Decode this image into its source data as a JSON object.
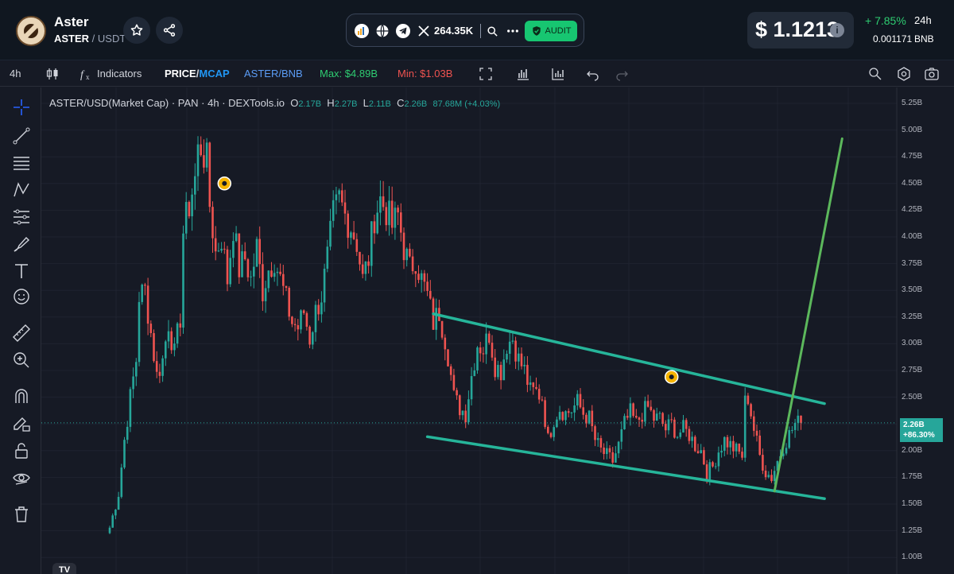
{
  "header": {
    "token_name": "Aster",
    "base": "ASTER",
    "quote": "USDT",
    "twitter_followers": "264.35K",
    "audit_label": "AUDIT",
    "price": "$ 1.1213",
    "change_pct": "+ 7.85%",
    "change_period": "24h",
    "bnb_price": "0.001171",
    "bnb_unit": "BNB",
    "icons": [
      "star-icon",
      "share-icon",
      "chart-logo-icon",
      "globe-icon",
      "telegram-icon",
      "x-icon",
      "search-icon",
      "more-icon",
      "shield-icon",
      "info-icon"
    ]
  },
  "toolbar": {
    "interval": "4h",
    "indicators": "Indicators",
    "price_label": "PRICE",
    "mcap_label": "MCAP",
    "pair2": "ASTER/BNB",
    "max_label": "Max: $4.89B",
    "min_label": "Min: $1.03B",
    "colors": {
      "accent": "#2196f3",
      "max": "#2ecc71",
      "min": "#ef5350",
      "pair2": "#5b9cf6"
    }
  },
  "legend": {
    "title": "ASTER/USD(Market Cap) · PAN · 4h · DEXTools.io",
    "o_key": "O",
    "o_val": "2.17B",
    "h_key": "H",
    "h_val": "2.27B",
    "l_key": "L",
    "l_val": "2.11B",
    "c_key": "C",
    "c_val": "2.26B",
    "change": "87.68M (+4.03%)"
  },
  "price_axis": [
    "5.25B",
    "5.00B",
    "4.75B",
    "4.50B",
    "4.25B",
    "4.00B",
    "3.75B",
    "3.50B",
    "3.25B",
    "3.00B",
    "2.75B",
    "2.50B",
    "2.25B",
    "2.00B",
    "1.75B",
    "1.50B",
    "1.25B",
    "1.00B"
  ],
  "last_price_tag": {
    "price": "2.26B",
    "change": "+86.30%"
  },
  "tv_logo": "TV",
  "chart_data": {
    "type": "candlestick",
    "series_unit": "B",
    "ylim": [
      0.95,
      5.3
    ],
    "colors": {
      "up": "#26a69a",
      "down": "#ef5350",
      "channel": "#26b59a",
      "projection": "#5cb85c"
    },
    "close_path": [
      [
        0,
        1.28
      ],
      [
        3,
        1.6
      ],
      [
        5,
        2.1
      ],
      [
        7,
        2.5
      ],
      [
        9,
        2.85
      ],
      [
        10,
        3.45
      ],
      [
        12,
        3.5
      ],
      [
        14,
        3.1
      ],
      [
        16,
        2.7
      ],
      [
        18,
        2.85
      ],
      [
        20,
        3.2
      ],
      [
        22,
        2.9
      ],
      [
        24,
        3.25
      ],
      [
        25,
        4.05
      ],
      [
        27,
        4.3
      ],
      [
        29,
        4.55
      ],
      [
        30,
        4.8
      ],
      [
        31,
        4.85
      ],
      [
        33,
        4.7
      ],
      [
        34,
        4.3
      ],
      [
        36,
        3.85
      ],
      [
        38,
        4.0
      ],
      [
        40,
        3.6
      ],
      [
        42,
        4.1
      ],
      [
        44,
        3.7
      ],
      [
        46,
        3.8
      ],
      [
        48,
        3.6
      ],
      [
        50,
        3.9
      ],
      [
        52,
        3.5
      ],
      [
        54,
        3.7
      ],
      [
        56,
        3.8
      ],
      [
        58,
        3.6
      ],
      [
        60,
        3.4
      ],
      [
        62,
        3.2
      ],
      [
        64,
        3.15
      ],
      [
        66,
        3.3
      ],
      [
        68,
        3.05
      ],
      [
        70,
        3.3
      ],
      [
        72,
        3.45
      ],
      [
        74,
        3.8
      ],
      [
        76,
        4.2
      ],
      [
        78,
        4.35
      ],
      [
        80,
        4.2
      ],
      [
        82,
        4.1
      ],
      [
        84,
        3.95
      ],
      [
        86,
        3.6
      ],
      [
        88,
        3.8
      ],
      [
        90,
        4.2
      ],
      [
        92,
        4.35
      ],
      [
        94,
        4.25
      ],
      [
        96,
        4.1
      ],
      [
        98,
        4.2
      ],
      [
        100,
        3.9
      ],
      [
        102,
        3.7
      ],
      [
        104,
        3.8
      ],
      [
        106,
        3.6
      ],
      [
        108,
        3.45
      ],
      [
        110,
        3.2
      ],
      [
        112,
        3.3
      ],
      [
        114,
        3.05
      ],
      [
        115,
        2.9
      ],
      [
        117,
        2.5
      ],
      [
        119,
        2.4
      ],
      [
        121,
        2.35
      ],
      [
        123,
        2.7
      ],
      [
        125,
        3.0
      ],
      [
        127,
        2.95
      ],
      [
        129,
        3.1
      ],
      [
        131,
        2.8
      ],
      [
        133,
        2.75
      ],
      [
        135,
        3.0
      ],
      [
        137,
        3.05
      ],
      [
        139,
        2.85
      ],
      [
        141,
        2.75
      ],
      [
        143,
        2.55
      ],
      [
        145,
        2.55
      ],
      [
        147,
        2.5
      ],
      [
        149,
        2.1
      ],
      [
        151,
        2.3
      ],
      [
        153,
        2.4
      ],
      [
        155,
        2.35
      ],
      [
        157,
        2.38
      ],
      [
        159,
        2.45
      ],
      [
        161,
        2.35
      ],
      [
        163,
        2.3
      ],
      [
        165,
        2.1
      ],
      [
        167,
        2.0
      ],
      [
        169,
        1.95
      ],
      [
        171,
        1.9
      ],
      [
        173,
        2.05
      ],
      [
        175,
        2.25
      ],
      [
        177,
        2.35
      ],
      [
        179,
        2.25
      ],
      [
        181,
        2.35
      ],
      [
        183,
        2.4
      ],
      [
        185,
        2.3
      ],
      [
        187,
        2.3
      ],
      [
        189,
        2.2
      ],
      [
        191,
        2.25
      ],
      [
        193,
        2.15
      ],
      [
        195,
        2.2
      ],
      [
        197,
        2.15
      ],
      [
        199,
        2.05
      ],
      [
        201,
        2.0
      ],
      [
        203,
        1.8
      ],
      [
        205,
        1.85
      ],
      [
        207,
        2.0
      ],
      [
        209,
        2.1
      ],
      [
        211,
        2.05
      ],
      [
        213,
        2.0
      ],
      [
        215,
        1.95
      ],
      [
        216,
        2.45
      ],
      [
        217,
        2.5
      ],
      [
        219,
        2.2
      ],
      [
        221,
        1.95
      ],
      [
        223,
        1.8
      ],
      [
        225,
        1.75
      ],
      [
        227,
        1.9
      ],
      [
        229,
        2.05
      ],
      [
        231,
        2.15
      ],
      [
        233,
        2.25
      ],
      [
        235,
        2.26
      ]
    ],
    "channel_upper": [
      [
        110,
        3.28
      ],
      [
        243,
        2.44
      ]
    ],
    "channel_lower": [
      [
        108,
        2.13
      ],
      [
        243,
        1.55
      ]
    ],
    "projection": [
      [
        226,
        1.62
      ],
      [
        249,
        4.92
      ]
    ],
    "markers": [
      [
        39,
        4.5
      ],
      [
        191,
        2.69
      ]
    ]
  }
}
